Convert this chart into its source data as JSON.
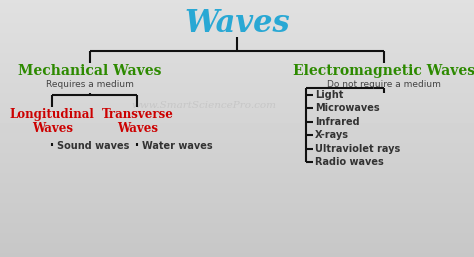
{
  "title": "Waves",
  "title_color": "#29a8d4",
  "title_fontsize": 22,
  "background_top": "#e8e8e8",
  "background_bottom": "#c8c8c8",
  "line_color": "#111111",
  "line_width": 1.5,
  "mechanical_label": "Mechanical Waves",
  "mechanical_color": "#2d8a00",
  "mechanical_sub": "Requires a medium",
  "mechanical_sub_color": "#444444",
  "mechanical_sub_fontsize": 6.5,
  "em_label": "Electromagnetic Waves",
  "em_color": "#2d8a00",
  "em_sub": "Do not require a medium",
  "em_sub_color": "#444444",
  "em_sub_fontsize": 6.5,
  "long_label": "Longitudinal\nWaves",
  "long_color": "#cc0000",
  "trans_label": "Transverse\nWaves",
  "trans_color": "#cc0000",
  "wave_fontsize": 8.5,
  "sound_label": "Sound waves",
  "water_label": "Water waves",
  "leaf_color": "#333333",
  "leaf_fontsize": 7,
  "em_items": [
    "Light",
    "Microwaves",
    "Infrared",
    "X-rays",
    "Ultraviolet rays",
    "Radio waves"
  ],
  "em_items_color": "#333333",
  "em_items_fontsize": 7,
  "watermark": "www.SmartSciencePro.com",
  "watermark_color": "#c0c0c0",
  "watermark_fontsize": 7.5,
  "mech_fontsize": 10,
  "em_fontsize": 10
}
